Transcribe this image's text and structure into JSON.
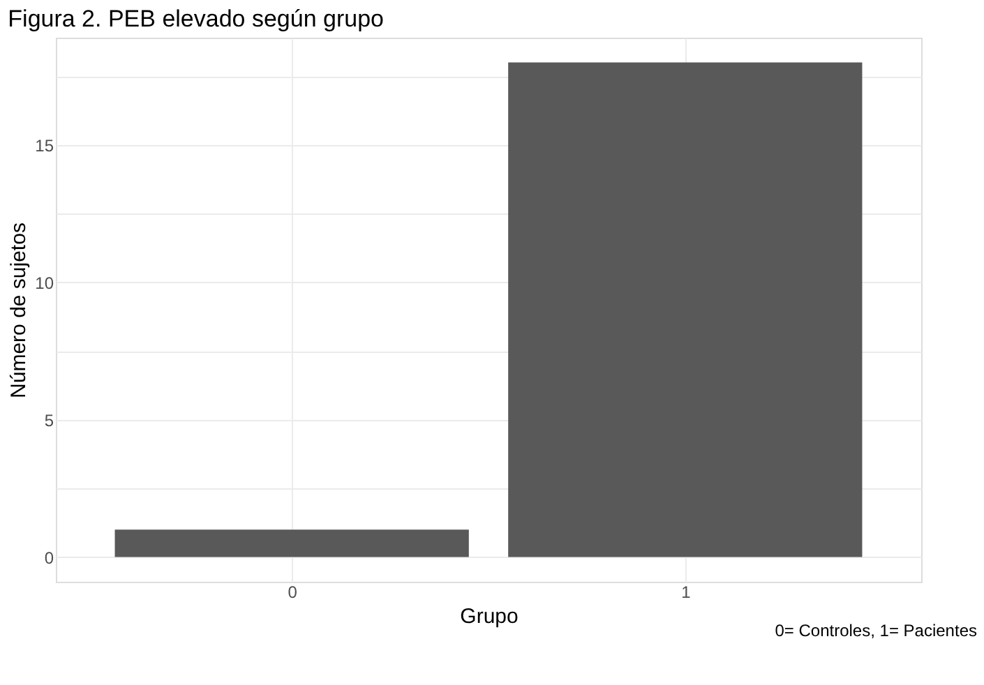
{
  "chart_data": {
    "type": "bar",
    "title": "Figura 2. PEB elevado según grupo",
    "xlabel": "Grupo",
    "ylabel": "Número de sujetos",
    "categories": [
      "0",
      "1"
    ],
    "values": [
      1,
      18
    ],
    "color": "#595959",
    "ylim": [
      -0.9,
      18.9
    ],
    "yticks": [
      0,
      {
        "value": 2.5,
        "label": null
      },
      5,
      {
        "value": 7.5,
        "label": null
      },
      10,
      {
        "value": 12.5,
        "label": null
      },
      15,
      {
        "value": 17.5,
        "label": null
      }
    ],
    "grid": true,
    "annotations": [
      "0= Controles, 1= Pacientes"
    ]
  }
}
